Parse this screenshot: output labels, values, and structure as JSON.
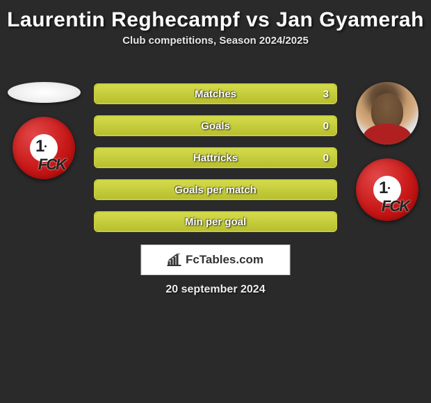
{
  "title": "Laurentin Reghecampf vs Jan Gyamerah",
  "subtitle": "Club competitions, Season 2024/2025",
  "stats": [
    {
      "label": "Matches",
      "left_pct": 0,
      "right_pct": 100,
      "right_value": "3"
    },
    {
      "label": "Goals",
      "left_pct": 50,
      "right_pct": 50,
      "right_value": "0"
    },
    {
      "label": "Hattricks",
      "left_pct": 50,
      "right_pct": 50,
      "right_value": "0"
    },
    {
      "label": "Goals per match",
      "left_pct": 50,
      "right_pct": 50,
      "right_value": ""
    },
    {
      "label": "Min per goal",
      "left_pct": 50,
      "right_pct": 50,
      "right_value": ""
    }
  ],
  "branding": {
    "text": "FcTables.com"
  },
  "date": "20 september 2024",
  "colors": {
    "background": "#2a2a2a",
    "bar_border": "#c8cf3e",
    "bar_fill_top": "#d4db4a",
    "bar_fill_bottom": "#b8bf2e",
    "club_red": "#c81818",
    "text": "#ffffff"
  },
  "club_name": "1. FC Kaiserslautern",
  "typography": {
    "title_fontsize": 30,
    "title_weight": 900,
    "subtitle_fontsize": 15,
    "bar_label_fontsize": 15,
    "brand_fontsize": 17,
    "date_fontsize": 16
  }
}
